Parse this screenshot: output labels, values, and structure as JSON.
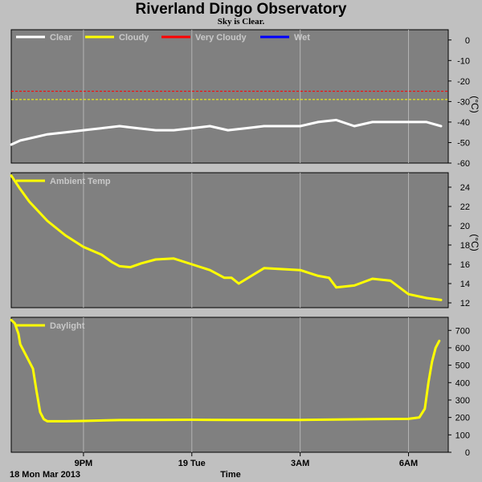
{
  "title": "Riverland Dingo Observatory",
  "subtitle": "Sky is Clear.",
  "x_axis": {
    "start_label": "18 Mon Mar 2013",
    "title": "Time",
    "ticks": [
      "9PM",
      "19 Tue",
      "3AM",
      "6AM"
    ]
  },
  "colors": {
    "panel_bg": "#808080",
    "page_bg": "#c0c0c0",
    "grid": "#b4b4b4",
    "clear": "#ffffff",
    "cloudy": "#ffff00",
    "very_cloudy": "#ff0000",
    "wet": "#0000ff",
    "legend_text": "#c8c8c8"
  },
  "chart_data": [
    {
      "type": "line",
      "name": "sky-temperature",
      "legend": [
        "Clear",
        "Cloudy",
        "Very Cloudy",
        "Wet"
      ],
      "ylabel": "(°C)",
      "ylim": [
        -60,
        5
      ],
      "yticks": [
        "0",
        "-10",
        "-20",
        "-30",
        "-40",
        "-50",
        "-60"
      ],
      "threshold_lines": [
        {
          "name": "Very Cloudy",
          "value": -25,
          "color": "#ff0000"
        },
        {
          "name": "Cloudy",
          "value": -29,
          "color": "#ffff00"
        }
      ],
      "series": [
        {
          "name": "Clear",
          "color": "#ffffff",
          "x_hours": [
            0,
            0.25,
            0.5,
            1,
            1.5,
            2,
            2.5,
            3,
            3.5,
            4,
            4.5,
            5,
            5.5,
            6,
            6.5,
            7,
            7.5,
            8,
            8.5,
            9,
            9.5,
            10,
            10.5,
            11,
            11.5,
            11.9
          ],
          "y": [
            -51,
            -49,
            -48,
            -46,
            -45,
            -44,
            -43,
            -42,
            -43,
            -44,
            -44,
            -43,
            -42,
            -44,
            -43,
            -42,
            -42,
            -42,
            -40,
            -39,
            -42,
            -40,
            -40,
            -40,
            -40,
            -42
          ]
        }
      ]
    },
    {
      "type": "line",
      "name": "ambient-temperature",
      "legend": [
        "Ambient Temp"
      ],
      "ylabel": "(°C)",
      "ylim": [
        11.5,
        25.5
      ],
      "yticks": [
        "24",
        "22",
        "20",
        "18",
        "16",
        "14",
        "12"
      ],
      "series": [
        {
          "name": "Ambient Temp",
          "color": "#ffff00",
          "x_hours": [
            0,
            0.25,
            0.5,
            1,
            1.5,
            2,
            2.5,
            2.8,
            3,
            3.3,
            3.6,
            4,
            4.5,
            5,
            5.5,
            5.9,
            6.1,
            6.3,
            7,
            7.5,
            8,
            8.5,
            8.8,
            9,
            9.5,
            10,
            10.5,
            11,
            11.5,
            11.9
          ],
          "y": [
            25.2,
            23.8,
            22.5,
            20.5,
            19,
            17.8,
            17,
            16.2,
            15.8,
            15.7,
            16.1,
            16.5,
            16.6,
            16,
            15.4,
            14.6,
            14.6,
            14,
            15.6,
            15.5,
            15.4,
            14.8,
            14.6,
            13.6,
            13.8,
            14.5,
            14.3,
            12.9,
            12.5,
            12.3
          ]
        }
      ]
    },
    {
      "type": "line",
      "name": "daylight",
      "legend": [
        "Daylight"
      ],
      "ylim": [
        0,
        775
      ],
      "yticks": [
        "700",
        "600",
        "500",
        "400",
        "300",
        "200",
        "100",
        "0"
      ],
      "series": [
        {
          "name": "Daylight",
          "color": "#ffff00",
          "x_hours": [
            0,
            0.1,
            0.2,
            0.25,
            0.4,
            0.6,
            0.7,
            0.8,
            0.9,
            1,
            1.5,
            2,
            3,
            4,
            5,
            6,
            7,
            8,
            9,
            10,
            11,
            11.3,
            11.45,
            11.55,
            11.65,
            11.75,
            11.85
          ],
          "y": [
            760,
            740,
            680,
            620,
            560,
            480,
            350,
            230,
            190,
            178,
            178,
            180,
            185,
            186,
            187,
            186,
            186,
            186,
            188,
            190,
            192,
            200,
            250,
            400,
            520,
            600,
            640
          ]
        }
      ]
    }
  ]
}
